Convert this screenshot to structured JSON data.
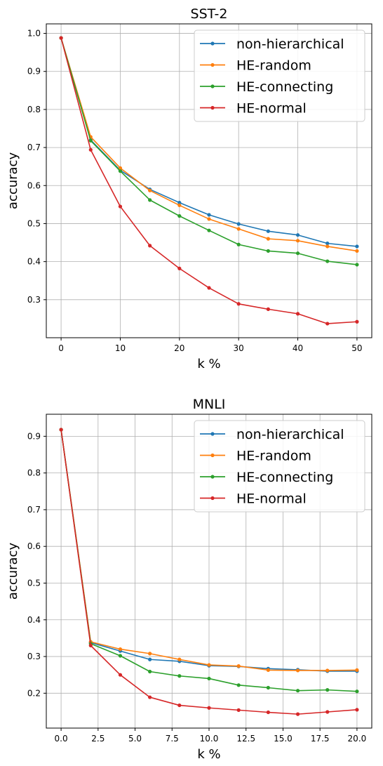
{
  "chart_data": [
    {
      "type": "line",
      "title": "SST-2",
      "xlabel": "k %",
      "ylabel": "accuracy",
      "xlim": [
        -2.5,
        52.5
      ],
      "ylim": [
        0.2,
        1.025
      ],
      "xticks": [
        0,
        10,
        20,
        30,
        40,
        50
      ],
      "xtick_labels": [
        "0",
        "10",
        "20",
        "30",
        "40",
        "50"
      ],
      "yticks": [
        0.3,
        0.4,
        0.5,
        0.6,
        0.7,
        0.8,
        0.9,
        1.0
      ],
      "ytick_labels": [
        "0.3",
        "0.4",
        "0.5",
        "0.6",
        "0.7",
        "0.8",
        "0.9",
        "1.0"
      ],
      "grid": true,
      "legend_position": "top-right",
      "x": [
        0,
        5,
        10,
        15,
        20,
        25,
        30,
        35,
        40,
        45,
        50
      ],
      "series": [
        {
          "name": "non-hierarchical",
          "color": "#1f77b4",
          "values": [
            0.988,
            0.72,
            0.64,
            0.59,
            0.555,
            0.523,
            0.499,
            0.48,
            0.47,
            0.448,
            0.44
          ]
        },
        {
          "name": "HE-random",
          "color": "#ff7f0e",
          "values": [
            0.988,
            0.728,
            0.646,
            0.587,
            0.548,
            0.512,
            0.486,
            0.46,
            0.455,
            0.44,
            0.428
          ]
        },
        {
          "name": "HE-connecting",
          "color": "#2ca02c",
          "values": [
            0.988,
            0.718,
            0.638,
            0.562,
            0.52,
            0.482,
            0.445,
            0.428,
            0.422,
            0.401,
            0.392
          ]
        },
        {
          "name": "HE-normal",
          "color": "#d62728",
          "values": [
            0.988,
            0.694,
            0.545,
            0.442,
            0.382,
            0.331,
            0.289,
            0.275,
            0.263,
            0.237,
            0.242
          ]
        }
      ]
    },
    {
      "type": "line",
      "title": "MNLI",
      "xlabel": "k %",
      "ylabel": "accuracy",
      "xlim": [
        -1.0,
        21.0
      ],
      "ylim": [
        0.105,
        0.96
      ],
      "xticks": [
        0.0,
        2.5,
        5.0,
        7.5,
        10.0,
        12.5,
        15.0,
        17.5,
        20.0
      ],
      "xtick_labels": [
        "0.0",
        "2.5",
        "5.0",
        "7.5",
        "10.0",
        "12.5",
        "15.0",
        "17.5",
        "20.0"
      ],
      "yticks": [
        0.2,
        0.3,
        0.4,
        0.5,
        0.6,
        0.7,
        0.8,
        0.9
      ],
      "ytick_labels": [
        "0.2",
        "0.3",
        "0.4",
        "0.5",
        "0.6",
        "0.7",
        "0.8",
        "0.9"
      ],
      "grid": true,
      "legend_position": "top-right",
      "x": [
        0,
        2,
        4,
        6,
        8,
        10,
        12,
        14,
        16,
        18,
        20
      ],
      "series": [
        {
          "name": "non-hierarchical",
          "color": "#1f77b4",
          "values": [
            0.918,
            0.338,
            0.315,
            0.292,
            0.287,
            0.275,
            0.273,
            0.267,
            0.264,
            0.26,
            0.26
          ]
        },
        {
          "name": "HE-random",
          "color": "#ff7f0e",
          "values": [
            0.918,
            0.34,
            0.32,
            0.308,
            0.292,
            0.277,
            0.274,
            0.263,
            0.262,
            0.262,
            0.263
          ]
        },
        {
          "name": "HE-connecting",
          "color": "#2ca02c",
          "values": [
            0.918,
            0.335,
            0.302,
            0.259,
            0.247,
            0.24,
            0.222,
            0.215,
            0.207,
            0.209,
            0.205
          ]
        },
        {
          "name": "HE-normal",
          "color": "#d62728",
          "values": [
            0.918,
            0.33,
            0.25,
            0.189,
            0.167,
            0.16,
            0.154,
            0.148,
            0.143,
            0.149,
            0.155
          ]
        }
      ]
    }
  ]
}
